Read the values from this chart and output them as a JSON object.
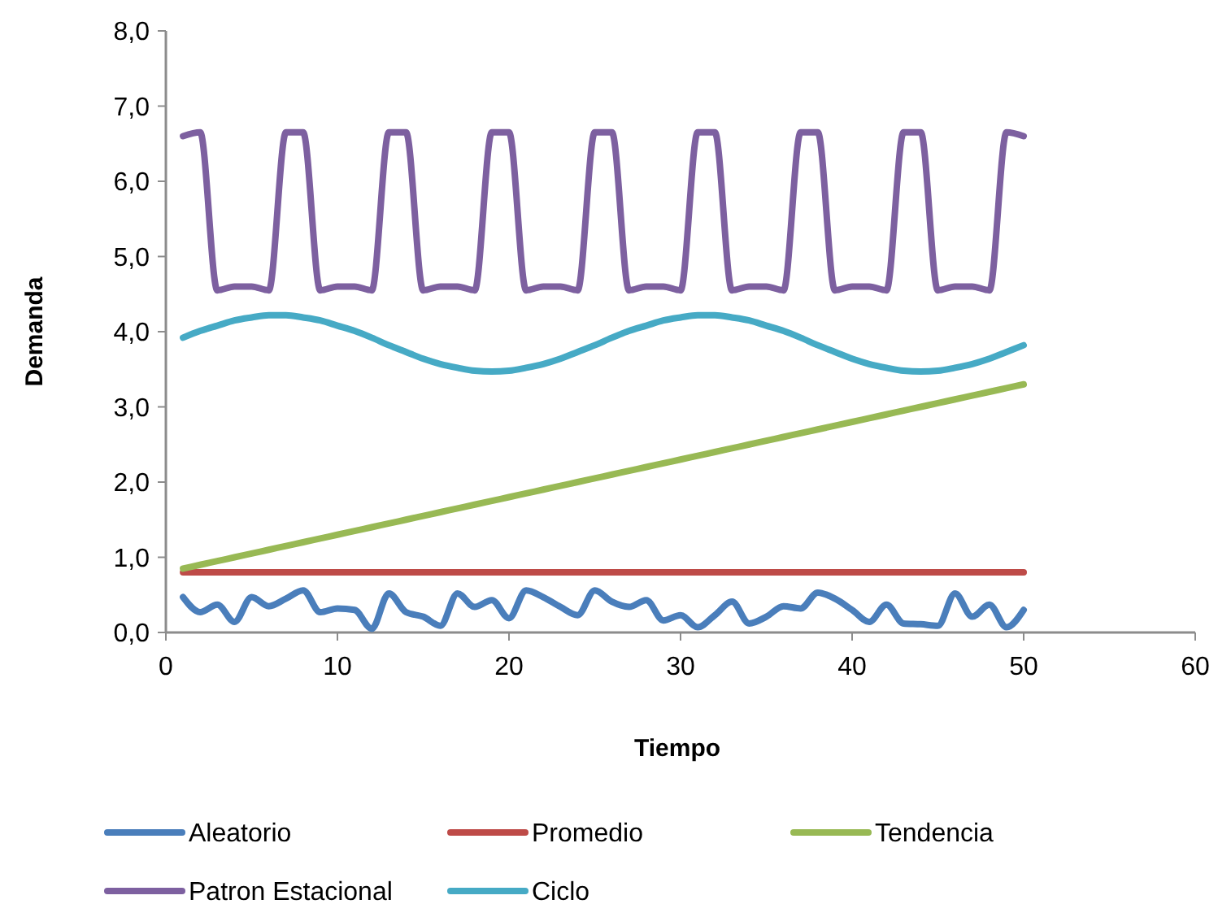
{
  "chart_data": {
    "type": "line",
    "xlabel": "Tiempo",
    "ylabel": "Demanda",
    "x": [
      1,
      2,
      3,
      4,
      5,
      6,
      7,
      8,
      9,
      10,
      11,
      12,
      13,
      14,
      15,
      16,
      17,
      18,
      19,
      20,
      21,
      22,
      23,
      24,
      25,
      26,
      27,
      28,
      29,
      30,
      31,
      32,
      33,
      34,
      35,
      36,
      37,
      38,
      39,
      40,
      41,
      42,
      43,
      44,
      45,
      46,
      47,
      48,
      49,
      50
    ],
    "xlim": [
      0,
      60
    ],
    "xticks": [
      0,
      10,
      20,
      30,
      40,
      50,
      60
    ],
    "ylim": [
      0,
      8
    ],
    "yticks": [
      {
        "value": 0,
        "label": "0,0"
      },
      {
        "value": 1,
        "label": "1,0"
      },
      {
        "value": 2,
        "label": "2,0"
      },
      {
        "value": 3,
        "label": "3,0"
      },
      {
        "value": 4,
        "label": "4,0"
      },
      {
        "value": 5,
        "label": "5,0"
      },
      {
        "value": 6,
        "label": "6,0"
      },
      {
        "value": 7,
        "label": "7,0"
      },
      {
        "value": 8,
        "label": "8,0"
      }
    ],
    "grid": false,
    "legend": "bottom",
    "marker": "none",
    "line_style": "solid",
    "series": [
      {
        "name": "Aleatorio",
        "color": "#4a7ebb",
        "values": [
          0.47,
          0.27,
          0.37,
          0.14,
          0.47,
          0.35,
          0.45,
          0.56,
          0.27,
          0.32,
          0.3,
          0.05,
          0.52,
          0.27,
          0.21,
          0.09,
          0.52,
          0.34,
          0.43,
          0.19,
          0.56,
          0.47,
          0.34,
          0.23,
          0.56,
          0.41,
          0.34,
          0.43,
          0.16,
          0.23,
          0.07,
          0.23,
          0.41,
          0.12,
          0.21,
          0.35,
          0.32,
          0.53,
          0.45,
          0.3,
          0.14,
          0.37,
          0.12,
          0.11,
          0.09,
          0.52,
          0.21,
          0.37,
          0.07,
          0.3
        ]
      },
      {
        "name": "Promedio",
        "color": "#be4b48",
        "values": [
          0.8,
          0.8,
          0.8,
          0.8,
          0.8,
          0.8,
          0.8,
          0.8,
          0.8,
          0.8,
          0.8,
          0.8,
          0.8,
          0.8,
          0.8,
          0.8,
          0.8,
          0.8,
          0.8,
          0.8,
          0.8,
          0.8,
          0.8,
          0.8,
          0.8,
          0.8,
          0.8,
          0.8,
          0.8,
          0.8,
          0.8,
          0.8,
          0.8,
          0.8,
          0.8,
          0.8,
          0.8,
          0.8,
          0.8,
          0.8,
          0.8,
          0.8,
          0.8,
          0.8,
          0.8,
          0.8,
          0.8,
          0.8,
          0.8,
          0.8
        ]
      },
      {
        "name": "Tendencia",
        "color": "#98b954",
        "values": [
          0.85,
          0.9,
          0.95,
          1.0,
          1.05,
          1.1,
          1.15,
          1.2,
          1.25,
          1.3,
          1.35,
          1.4,
          1.45,
          1.5,
          1.55,
          1.6,
          1.65,
          1.7,
          1.75,
          1.8,
          1.85,
          1.9,
          1.95,
          2.0,
          2.05,
          2.1,
          2.15,
          2.2,
          2.25,
          2.3,
          2.35,
          2.4,
          2.45,
          2.5,
          2.55,
          2.6,
          2.65,
          2.7,
          2.75,
          2.8,
          2.85,
          2.9,
          2.95,
          3.0,
          3.05,
          3.1,
          3.15,
          3.2,
          3.25,
          3.3
        ]
      },
      {
        "name": "Patron Estacional",
        "color": "#7d60a0",
        "values": [
          6.6,
          6.65,
          4.55,
          4.6,
          4.6,
          4.55,
          6.65,
          6.65,
          4.55,
          4.6,
          4.6,
          4.55,
          6.65,
          6.65,
          4.55,
          4.6,
          4.6,
          4.55,
          6.65,
          6.65,
          4.55,
          4.6,
          4.6,
          4.55,
          6.65,
          6.65,
          4.55,
          4.6,
          4.6,
          4.55,
          6.65,
          6.65,
          4.55,
          4.6,
          4.6,
          4.55,
          6.65,
          6.65,
          4.55,
          4.6,
          4.6,
          4.55,
          6.65,
          6.65,
          4.55,
          4.6,
          4.6,
          4.55,
          6.65,
          6.6
        ]
      },
      {
        "name": "Ciclo",
        "color": "#46aac5",
        "values": [
          3.92,
          4.01,
          4.08,
          4.15,
          4.19,
          4.22,
          4.22,
          4.19,
          4.15,
          4.08,
          4.01,
          3.92,
          3.82,
          3.73,
          3.64,
          3.57,
          3.52,
          3.48,
          3.47,
          3.48,
          3.52,
          3.57,
          3.64,
          3.73,
          3.82,
          3.92,
          4.01,
          4.08,
          4.15,
          4.19,
          4.22,
          4.22,
          4.19,
          4.15,
          4.08,
          4.01,
          3.92,
          3.82,
          3.73,
          3.64,
          3.57,
          3.52,
          3.48,
          3.47,
          3.48,
          3.52,
          3.57,
          3.64,
          3.73,
          3.82
        ]
      }
    ]
  }
}
